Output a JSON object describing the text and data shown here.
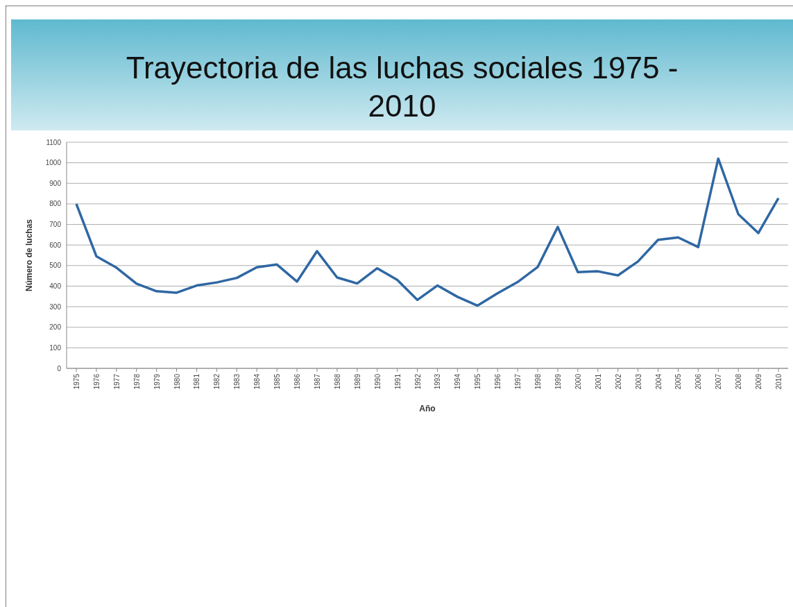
{
  "chart_data": {
    "type": "line",
    "title": "Trayectoria de las luchas sociales 1975 - 2010",
    "xlabel": "Año",
    "ylabel": "Número de luchas",
    "categories": [
      "1975",
      "1976",
      "1977",
      "1978",
      "1979",
      "1980",
      "1981",
      "1982",
      "1983",
      "1984",
      "1985",
      "1986",
      "1987",
      "1988",
      "1989",
      "1990",
      "1991",
      "1992",
      "1993",
      "1994",
      "1995",
      "1996",
      "1997",
      "1998",
      "1999",
      "2000",
      "2001",
      "2002",
      "2003",
      "2004",
      "2005",
      "2006",
      "2007",
      "2008",
      "2009",
      "2010"
    ],
    "series": [
      {
        "color": "#2f67a3",
        "values": [
          800,
          545,
          490,
          412,
          375,
          368,
          403,
          418,
          440,
          492,
          505,
          422,
          570,
          442,
          413,
          487,
          430,
          333,
          403,
          348,
          305,
          365,
          420,
          493,
          688,
          468,
          472,
          452,
          520,
          625,
          637,
          590,
          1020,
          750,
          658,
          828
        ]
      }
    ],
    "ylim": [
      0,
      1100
    ],
    "yticks": [
      0,
      100,
      200,
      300,
      400,
      500,
      600,
      700,
      800,
      900,
      1000,
      1100
    ],
    "grid": "y",
    "marker": "none",
    "line_style": "solid"
  }
}
